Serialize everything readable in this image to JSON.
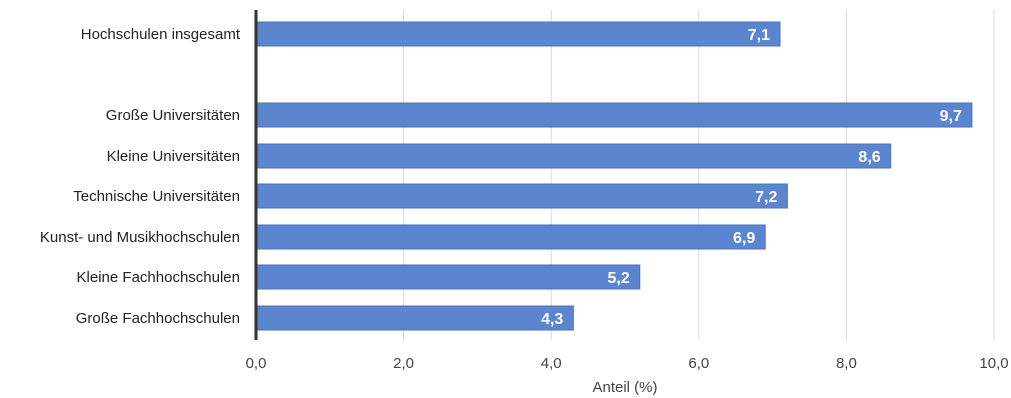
{
  "chart_data": {
    "type": "bar",
    "orientation": "horizontal",
    "categories": [
      "Hochschulen insgesamt",
      "",
      "Große Universitäten",
      "Kleine Universitäten",
      "Technische Universitäten",
      "Kunst- und Musikhochschulen",
      "Kleine Fachhochschulen",
      "Große Fachhochschulen"
    ],
    "values": [
      7.1,
      null,
      9.7,
      8.6,
      7.2,
      6.9,
      5.2,
      4.3
    ],
    "data_labels": [
      "7,1",
      "",
      "9,7",
      "8,6",
      "7,2",
      "6,9",
      "5,2",
      "4,3"
    ],
    "xlabel": "Anteil (%)",
    "ylabel": "",
    "xlim": [
      0,
      10
    ],
    "x_ticks": [
      0,
      2,
      4,
      6,
      8,
      10
    ],
    "x_tick_labels": [
      "0,0",
      "2,0",
      "4,0",
      "6,0",
      "8,0",
      "10,0"
    ],
    "grid": true,
    "bar_color": "#5B85CE",
    "bar_edge_color": "#4A72B8",
    "grid_color": "#d9d9d9",
    "axis_color": "#333333"
  }
}
